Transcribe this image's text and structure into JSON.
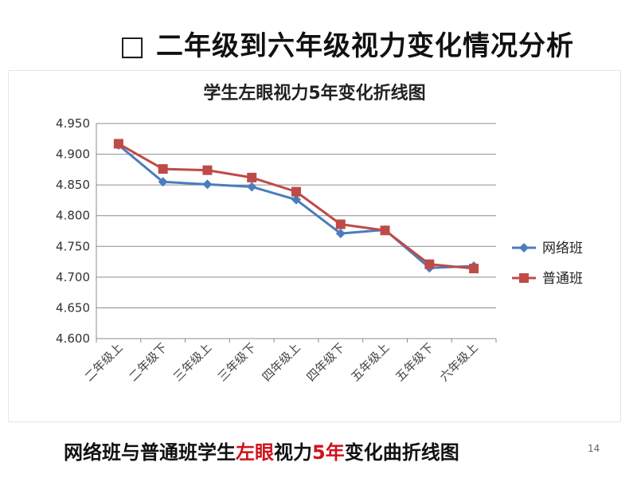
{
  "slide": {
    "title": "□ 二年级到六年级视力变化情况分析",
    "page_number": "14"
  },
  "caption": {
    "part1": "网络班与普通班学生",
    "part2": "左眼",
    "part3": "视力",
    "part4": "5年",
    "part5": "变化曲折线图"
  },
  "chart_data": {
    "type": "line",
    "title": "学生左眼视力5年变化折线图",
    "categories": [
      "二年级上",
      "二年级下",
      "三年级上",
      "三年级下",
      "四年级上",
      "四年级下",
      "五年级上",
      "五年级下",
      "六年级上"
    ],
    "series": [
      {
        "name": "网络班",
        "color": "#4a7ebb",
        "marker": "diamond",
        "values": [
          4.915,
          4.855,
          4.851,
          4.847,
          4.826,
          4.771,
          4.777,
          4.715,
          4.718
        ]
      },
      {
        "name": "普通班",
        "color": "#be4b48",
        "marker": "square",
        "values": [
          4.917,
          4.876,
          4.874,
          4.862,
          4.839,
          4.786,
          4.776,
          4.721,
          4.714
        ]
      }
    ],
    "ylim": [
      4.6,
      4.95
    ],
    "yticks": [
      "4.950",
      "4.900",
      "4.850",
      "4.800",
      "4.750",
      "4.700",
      "4.650",
      "4.600"
    ],
    "ytick_values": [
      4.95,
      4.9,
      4.85,
      4.8,
      4.75,
      4.7,
      4.65,
      4.6
    ],
    "grid": true,
    "legend_position": "right"
  }
}
